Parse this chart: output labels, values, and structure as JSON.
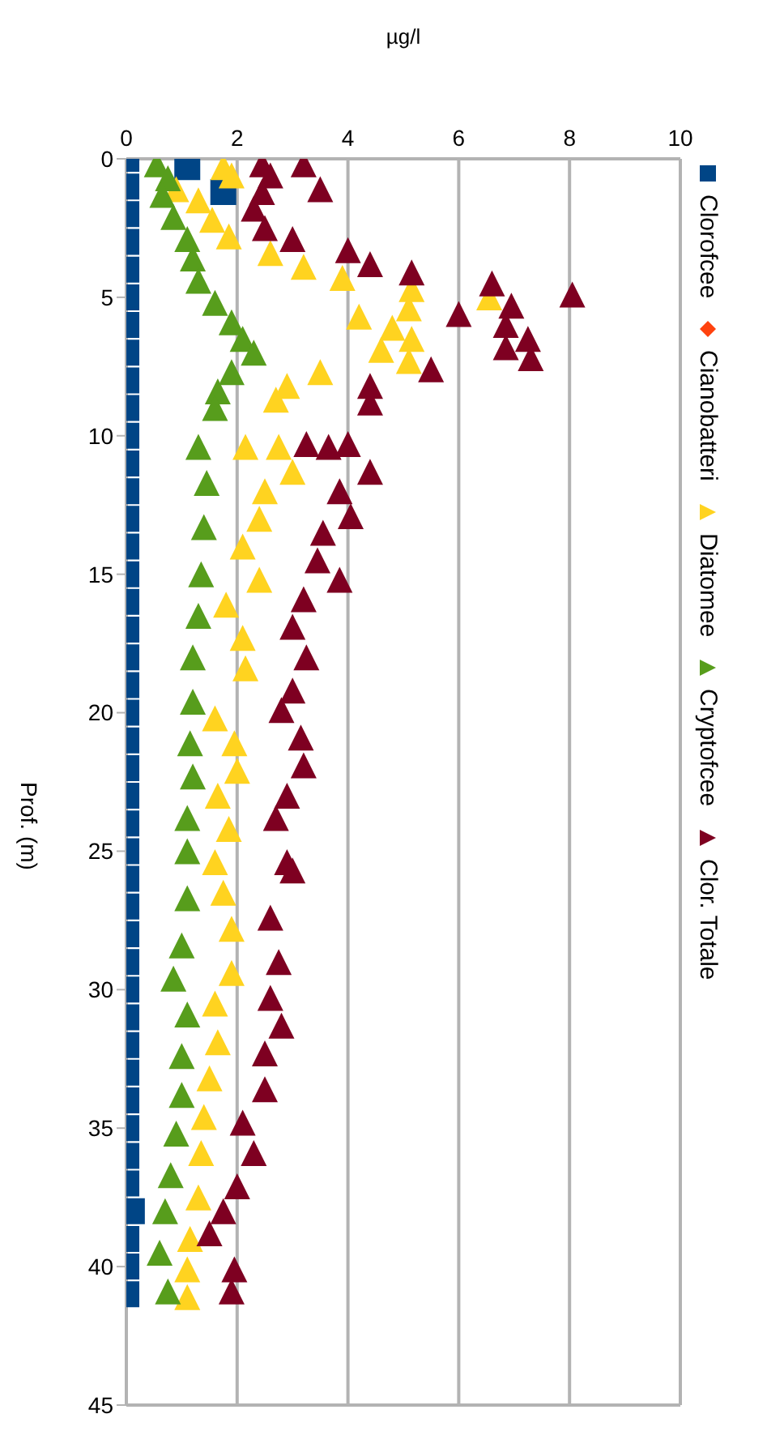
{
  "chart_data": {
    "type": "scatter",
    "xlabel": "µg/l",
    "ylabel": "Prof. (m)",
    "xlim": [
      0,
      10
    ],
    "xticks": [
      0,
      2,
      4,
      6,
      8,
      10
    ],
    "ylim": [
      45,
      0
    ],
    "yticks": [
      0,
      5,
      10,
      15,
      20,
      25,
      30,
      35,
      40,
      45
    ],
    "grid": "x",
    "legend": "right",
    "series": [
      {
        "name": "Clorofcee",
        "color": "#004586",
        "marker": "square",
        "x": [
          1.1,
          1.75,
          0,
          0,
          0,
          0,
          0,
          0,
          0,
          0,
          0,
          0,
          0,
          0,
          0,
          0,
          0,
          0,
          0,
          0,
          0,
          0,
          0,
          0,
          0,
          0,
          0,
          0,
          0,
          0,
          0,
          0,
          0,
          0,
          0,
          0,
          0,
          0,
          0,
          0,
          0.1,
          0,
          0,
          0
        ],
        "values": [
          0.3,
          1.2,
          0,
          1,
          2,
          3,
          4,
          5,
          6,
          7,
          8,
          9,
          10,
          11,
          12,
          13,
          14,
          15,
          16,
          17,
          18,
          19,
          20,
          21,
          22,
          23,
          24,
          25,
          26,
          27,
          28,
          29,
          30,
          31,
          32,
          33,
          34,
          35,
          36,
          37,
          38,
          39,
          40,
          41
        ]
      },
      {
        "name": "Cianobatteri",
        "color": "#ff420e",
        "marker": "diamond"
      },
      {
        "name": "Diatomee",
        "color": "#ffd320",
        "marker": "triangle",
        "x": [
          1.75,
          1.9,
          0.9,
          1.3,
          1.55,
          1.85,
          2.6,
          3.2,
          3.9,
          5.15,
          6.55,
          5.1,
          4.2,
          4.8,
          5.15,
          4.6,
          5.1,
          3.5,
          2.9,
          2.7,
          2.15,
          2.75,
          3.0,
          2.5,
          2.4,
          2.1,
          2.4,
          1.8,
          2.1,
          2.15,
          1.6,
          1.95,
          2.0,
          1.65,
          1.85,
          1.6,
          1.75,
          1.9,
          1.9,
          1.6,
          1.65,
          1.5,
          1.4,
          1.35,
          1.3,
          1.15,
          1.1,
          1.1
        ],
        "values": [
          0.3,
          0.6,
          1.1,
          1.5,
          2.2,
          2.8,
          3.4,
          3.9,
          4.3,
          4.7,
          5.0,
          5.4,
          5.7,
          6.1,
          6.5,
          6.9,
          7.3,
          7.7,
          8.2,
          8.7,
          10.4,
          10.4,
          11.3,
          12.0,
          13.0,
          14.0,
          15.2,
          16.1,
          17.3,
          18.4,
          20.2,
          21.1,
          22.1,
          23.0,
          24.2,
          25.4,
          26.5,
          27.8,
          29.4,
          30.5,
          31.9,
          33.2,
          34.6,
          35.9,
          37.5,
          39.0,
          40.1,
          41.1
        ]
      },
      {
        "name": "Cryptofcee",
        "color": "#579d1c",
        "marker": "triangle",
        "x": [
          0.55,
          0.75,
          0.65,
          0.85,
          1.1,
          1.2,
          1.3,
          1.6,
          1.9,
          2.1,
          2.3,
          1.9,
          1.65,
          1.6,
          1.3,
          1.45,
          1.4,
          1.35,
          1.3,
          1.2,
          1.2,
          1.15,
          1.2,
          1.1,
          1.1,
          1.1,
          1.0,
          0.85,
          1.1,
          1.0,
          1.0,
          0.9,
          0.8,
          0.7,
          0.6,
          0.75
        ],
        "values": [
          0.2,
          0.7,
          1.3,
          2.1,
          2.9,
          3.6,
          4.4,
          5.2,
          5.9,
          6.5,
          7.0,
          7.7,
          8.4,
          9.0,
          10.4,
          11.7,
          13.3,
          15.0,
          16.5,
          18.0,
          19.6,
          21.1,
          22.3,
          23.8,
          25.0,
          26.7,
          28.4,
          29.6,
          30.9,
          32.4,
          33.8,
          35.2,
          36.7,
          38.0,
          39.5,
          40.9
        ]
      },
      {
        "name": "Clor. Totale",
        "color": "#7e0021",
        "marker": "triangle",
        "x": [
          2.45,
          3.2,
          3.5,
          2.6,
          2.45,
          2.3,
          2.5,
          3.0,
          4.0,
          4.4,
          5.15,
          6.6,
          8.05,
          6.95,
          6.0,
          6.85,
          7.25,
          6.85,
          7.3,
          5.5,
          4.4,
          4.4,
          3.65,
          3.25,
          4.0,
          4.4,
          3.85,
          4.05,
          3.55,
          3.45,
          3.85,
          3.2,
          3.0,
          3.25,
          3.0,
          2.8,
          3.15,
          3.2,
          2.9,
          2.7,
          2.9,
          3.0,
          2.6,
          2.75,
          2.6,
          2.8,
          2.5,
          2.5,
          2.1,
          2.3,
          2.0,
          1.75,
          1.5,
          1.95,
          1.9
        ],
        "values": [
          0.2,
          0.2,
          1.1,
          0.6,
          1.2,
          1.8,
          2.5,
          2.9,
          3.3,
          3.8,
          4.1,
          4.5,
          4.9,
          5.3,
          5.6,
          6.0,
          6.5,
          6.8,
          7.2,
          7.6,
          8.2,
          8.8,
          10.4,
          10.3,
          10.3,
          11.3,
          12.0,
          12.9,
          13.5,
          14.5,
          15.2,
          15.9,
          16.9,
          18.0,
          19.2,
          19.9,
          20.9,
          21.9,
          23.0,
          23.8,
          25.4,
          25.7,
          27.4,
          29.0,
          30.3,
          31.3,
          32.3,
          33.6,
          34.8,
          35.9,
          37.1,
          38.0,
          38.8,
          40.1,
          40.9
        ]
      }
    ]
  }
}
